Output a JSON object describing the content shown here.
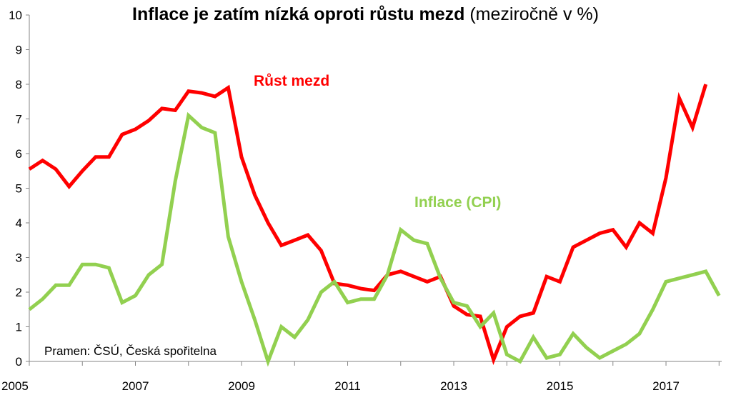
{
  "chart_data": {
    "type": "line",
    "title": "Inflace je zatím nízká oproti růstu mezd",
    "subtitle": "(meziročně v %)",
    "source": "Pramen: ČSÚ, Česká spořitelna",
    "ylim": [
      0,
      10
    ],
    "yticks": [
      "0",
      "1",
      "2",
      "3",
      "4",
      "5",
      "6",
      "7",
      "8",
      "9",
      "10"
    ],
    "xlim": [
      2005,
      2018.05
    ],
    "xticks": [
      "2005",
      "2007",
      "2009",
      "2011",
      "2013",
      "2015",
      "2017"
    ],
    "grid": false,
    "series": [
      {
        "name": "Růst mezd",
        "color": "#ff0000",
        "x": [
          2005.0,
          2005.25,
          2005.5,
          2005.75,
          2006.0,
          2006.25,
          2006.5,
          2006.75,
          2007.0,
          2007.25,
          2007.5,
          2007.75,
          2008.0,
          2008.25,
          2008.5,
          2008.75,
          2009.0,
          2009.25,
          2009.5,
          2009.75,
          2010.0,
          2010.25,
          2010.5,
          2010.75,
          2011.0,
          2011.25,
          2011.5,
          2011.75,
          2012.0,
          2012.25,
          2012.5,
          2012.75,
          2013.0,
          2013.25,
          2013.5,
          2013.75,
          2014.0,
          2014.25,
          2014.5,
          2014.75,
          2015.0,
          2015.25,
          2015.5,
          2015.75,
          2016.0,
          2016.25,
          2016.5,
          2016.75,
          2017.0,
          2017.25,
          2017.5,
          2017.75
        ],
        "values": [
          5.55,
          5.8,
          5.55,
          5.05,
          5.5,
          5.9,
          5.9,
          6.55,
          6.7,
          6.95,
          7.3,
          7.25,
          7.8,
          7.75,
          7.65,
          7.9,
          5.9,
          4.8,
          4.0,
          3.35,
          3.5,
          3.65,
          3.2,
          2.25,
          2.2,
          2.1,
          2.05,
          2.5,
          2.6,
          2.45,
          2.3,
          2.45,
          1.6,
          1.35,
          1.3,
          0.05,
          1.0,
          1.3,
          1.4,
          2.45,
          2.3,
          3.3,
          3.5,
          3.7,
          3.8,
          3.3,
          4.0,
          3.7,
          5.3,
          7.6,
          6.75,
          8.0
        ]
      },
      {
        "name": "Inflace (CPI)",
        "color": "#92d050",
        "x": [
          2005.0,
          2005.25,
          2005.5,
          2005.75,
          2006.0,
          2006.25,
          2006.5,
          2006.75,
          2007.0,
          2007.25,
          2007.5,
          2007.75,
          2008.0,
          2008.25,
          2008.5,
          2008.75,
          2009.0,
          2009.25,
          2009.5,
          2009.75,
          2010.0,
          2010.25,
          2010.5,
          2010.75,
          2011.0,
          2011.25,
          2011.5,
          2011.75,
          2012.0,
          2012.25,
          2012.5,
          2012.75,
          2013.0,
          2013.25,
          2013.5,
          2013.75,
          2014.0,
          2014.25,
          2014.5,
          2014.75,
          2015.0,
          2015.25,
          2015.5,
          2015.75,
          2016.0,
          2016.25,
          2016.5,
          2016.75,
          2017.0,
          2017.25,
          2017.5,
          2017.75,
          2018.0
        ],
        "values": [
          1.5,
          1.8,
          2.2,
          2.2,
          2.8,
          2.8,
          2.7,
          1.7,
          1.9,
          2.5,
          2.8,
          5.2,
          7.1,
          6.75,
          6.6,
          3.6,
          2.3,
          1.2,
          0.0,
          1.0,
          0.7,
          1.2,
          2.0,
          2.3,
          1.7,
          1.8,
          1.8,
          2.5,
          3.8,
          3.5,
          3.4,
          2.4,
          1.7,
          1.6,
          1.0,
          1.4,
          0.2,
          0.0,
          0.7,
          0.1,
          0.2,
          0.8,
          0.4,
          0.1,
          0.3,
          0.5,
          0.8,
          1.5,
          2.3,
          2.4,
          2.5,
          2.6,
          1.9
        ]
      }
    ]
  }
}
